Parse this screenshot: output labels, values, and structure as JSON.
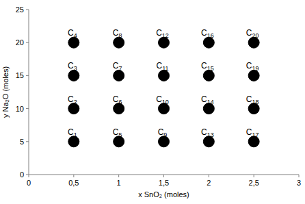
{
  "chart_data": {
    "type": "scatter",
    "xlabel": "x SnO₂ (moles)",
    "ylabel": "y Na₂O (moles)",
    "xlim": [
      0,
      3
    ],
    "ylim": [
      0,
      25
    ],
    "xticks": [
      0,
      {
        "value": 0.5,
        "label": "0,5"
      },
      1,
      {
        "value": 1.5,
        "label": "1,5"
      },
      2,
      {
        "value": 2.5,
        "label": "2,5"
      },
      3
    ],
    "yticks": [
      0,
      5,
      10,
      15,
      20,
      25
    ],
    "grid": false,
    "marker": "circle",
    "series": [
      {
        "color": "#000000",
        "x": [
          0.5,
          0.5,
          0.5,
          0.5,
          1,
          1,
          1,
          1,
          1.5,
          1.5,
          1.5,
          1.5,
          2,
          2,
          2,
          2,
          2.5,
          2.5,
          2.5,
          2.5
        ],
        "values": [
          5,
          10,
          15,
          20,
          5,
          10,
          15,
          20,
          5,
          10,
          15,
          20,
          5,
          10,
          15,
          20,
          5,
          10,
          15,
          20
        ],
        "labels": [
          "C1",
          "C2",
          "C3",
          "C4",
          "C5",
          "C6",
          "C7",
          "C8",
          "C9",
          "C10",
          "C11",
          "C12",
          "C13",
          "C14",
          "C15",
          "C16",
          "C17",
          "C18",
          "C19",
          "C20"
        ]
      }
    ]
  }
}
